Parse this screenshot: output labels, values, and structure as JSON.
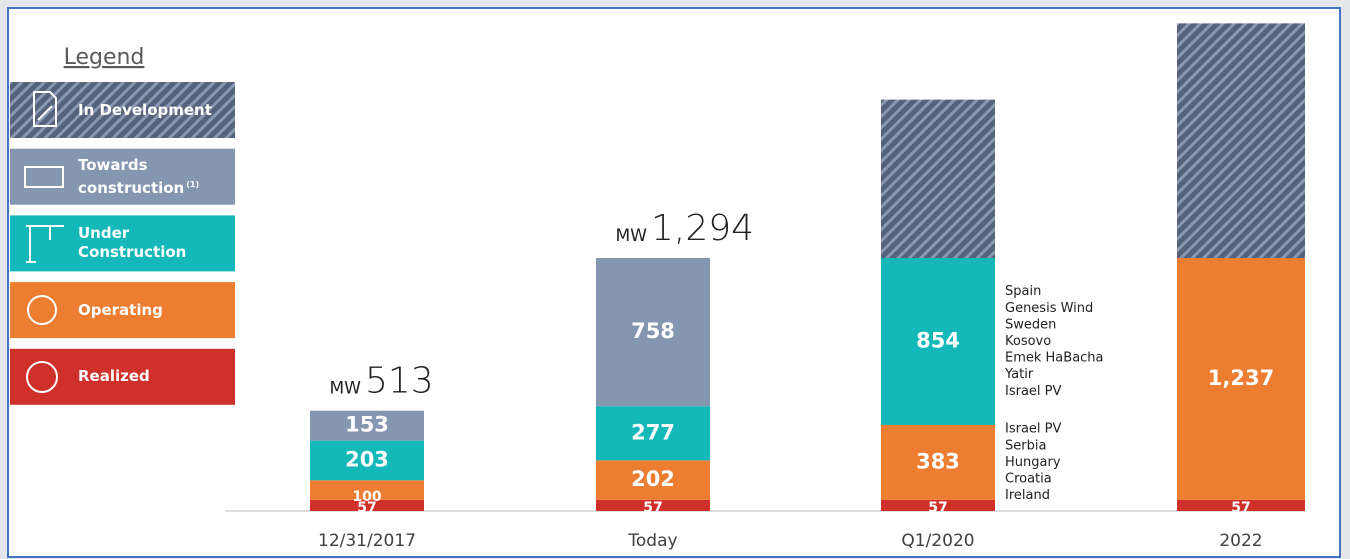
{
  "chart_data": {
    "type": "stacked_bar",
    "legend_title": "Legend",
    "categories": [
      "12/31/2017",
      "Today",
      "Q1/2020",
      "2022"
    ],
    "series": [
      {
        "name": "Realized",
        "color": "#d0302a",
        "values": [
          57,
          57,
          57,
          57
        ]
      },
      {
        "name": "Operating",
        "color": "#ed7d31",
        "values": [
          100,
          202,
          383,
          1237
        ],
        "value_labels": [
          "100",
          "202",
          "383",
          "1,237"
        ]
      },
      {
        "name": "Under Construction",
        "color": "#14b8b8",
        "values": [
          203,
          277,
          854,
          null
        ]
      },
      {
        "name": "Towards construction",
        "footnote": "(1)",
        "color": "#8496b0",
        "values": [
          153,
          758,
          null,
          null
        ]
      },
      {
        "name": "In Development",
        "color": "#55627c",
        "pattern": "hatch",
        "values": [
          null,
          null,
          810,
          1200
        ]
      }
    ],
    "totals": {
      "unit": "MW",
      "values": [
        513,
        1294
      ],
      "value_labels": [
        "513",
        "1,294"
      ]
    },
    "annotations": [
      {
        "lines": [
          "Spain",
          "Genesis Wind",
          "Sweden",
          "Kosovo",
          "Emek HaBacha",
          "Yatir",
          "Israel PV"
        ]
      },
      {
        "lines": [
          "Israel PV",
          "Serbia",
          "Hungary",
          "Croatia",
          "Ireland"
        ]
      }
    ]
  }
}
